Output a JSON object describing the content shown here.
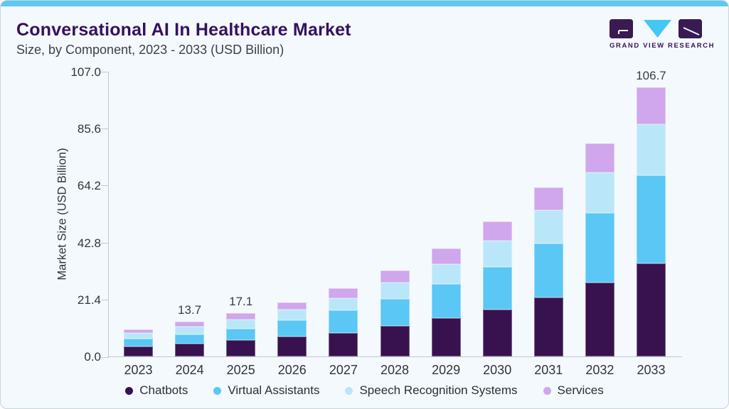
{
  "card": {
    "title": "Conversational AI In Healthcare Market",
    "subtitle": "Size, by Component, 2023 - 2033 (USD Billion)",
    "logo": {
      "name": "Grand View Research",
      "text": "GRAND VIEW RESEARCH"
    }
  },
  "colors": {
    "accent_bar": "#5ec8f0",
    "title_text": "#35115e",
    "body_text": "#3f4049",
    "axis_line": "#c2c9d0",
    "card_background": "#f3f9fc",
    "logo_purple": "#3a1a52",
    "logo_cyan": "#44c8f3"
  },
  "chart_data": {
    "type": "bar",
    "stacked": true,
    "title": "Conversational AI In Healthcare Market",
    "subtitle": "Size, by Component, 2023 - 2033 (USD Billion)",
    "xlabel": "",
    "ylabel": "Market Size (USD Billion)",
    "ylim": [
      0,
      107.0
    ],
    "ytick_labels": [
      "0.0",
      "21.4",
      "42.8",
      "64.2",
      "85.6",
      "107.0"
    ],
    "grid": false,
    "legend_position": "bottom",
    "categories": [
      "2023",
      "2024",
      "2025",
      "2026",
      "2027",
      "2028",
      "2029",
      "2030",
      "2031",
      "2032",
      "2033"
    ],
    "series": [
      {
        "name": "Chatbots",
        "color": "#38124f",
        "values": [
          3.9,
          5.0,
          6.4,
          7.8,
          9.4,
          12.1,
          15.1,
          18.6,
          23.4,
          29.3,
          36.9
        ]
      },
      {
        "name": "Virtual Assistants",
        "color": "#5ac7f4",
        "values": [
          3.0,
          3.7,
          4.7,
          6.5,
          8.8,
          10.6,
          13.5,
          16.9,
          21.4,
          27.4,
          34.9
        ]
      },
      {
        "name": "Speech Recognition Systems",
        "color": "#bae6f9",
        "values": [
          2.3,
          3.0,
          3.4,
          4.2,
          5.0,
          6.6,
          8.0,
          10.3,
          13.0,
          16.1,
          20.3
        ]
      },
      {
        "name": "Services",
        "color": "#d0a6ec",
        "values": [
          1.6,
          2.0,
          2.6,
          2.9,
          3.9,
          4.7,
          6.1,
          7.7,
          9.2,
          11.7,
          14.6
        ]
      }
    ],
    "totals": [
      10.8,
      13.7,
      17.1,
      21.4,
      27.1,
      34.0,
      42.7,
      53.5,
      67.0,
      84.5,
      106.7
    ],
    "total_labels": [
      "",
      "13.7",
      "17.1",
      "",
      "",
      "",
      "",
      "",
      "",
      "",
      "106.7"
    ]
  }
}
